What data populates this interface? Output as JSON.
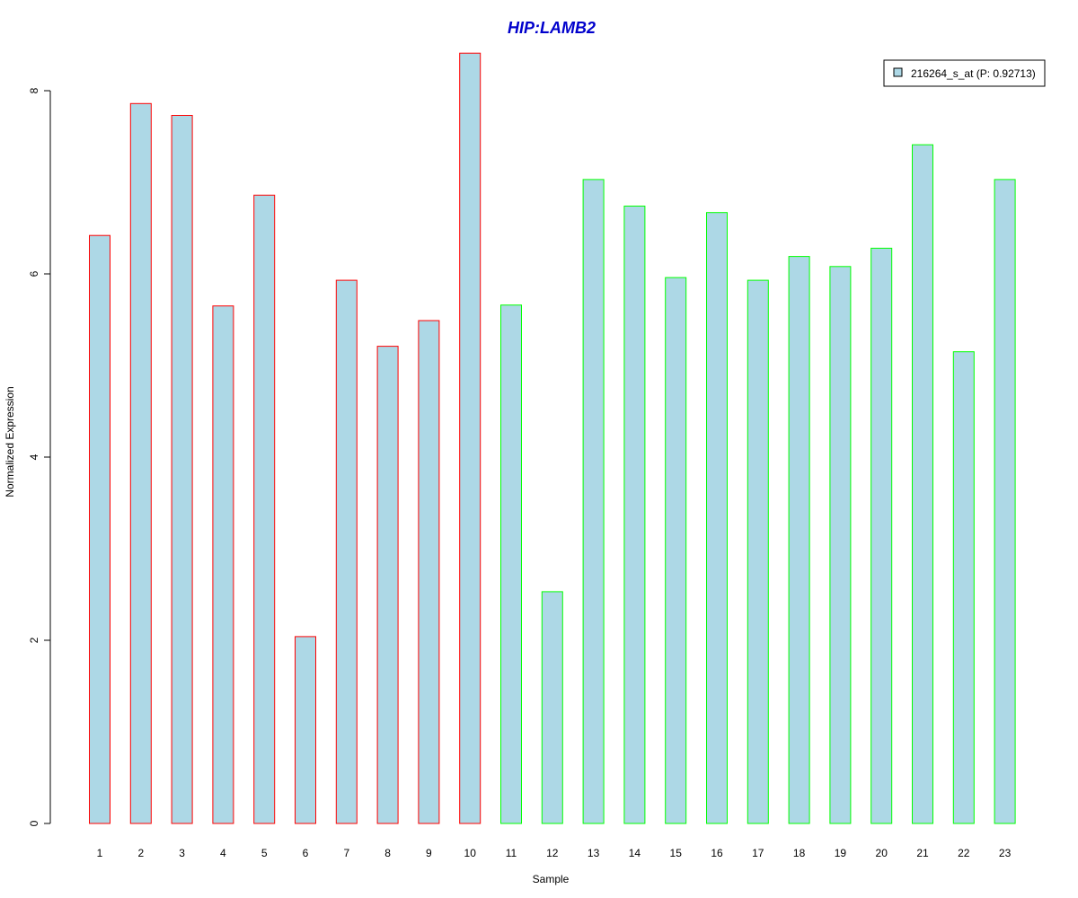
{
  "chart_data": {
    "type": "bar",
    "title": "HIP:LAMB2",
    "xlabel": "Sample",
    "ylabel": "Normalized Expression",
    "categories": [
      "1",
      "2",
      "3",
      "4",
      "5",
      "6",
      "7",
      "8",
      "9",
      "10",
      "11",
      "12",
      "13",
      "14",
      "15",
      "16",
      "17",
      "18",
      "19",
      "20",
      "21",
      "22",
      "23"
    ],
    "series": [
      {
        "name": "216264_s_at (P: 0.92713)",
        "values": [
          6.42,
          7.86,
          7.73,
          5.65,
          6.86,
          2.04,
          5.93,
          5.21,
          5.49,
          8.41,
          5.66,
          2.53,
          7.03,
          6.74,
          5.96,
          6.67,
          5.93,
          6.19,
          6.08,
          6.28,
          7.41,
          5.15,
          7.03
        ]
      }
    ],
    "bar_outline_groups": [
      "red",
      "red",
      "red",
      "red",
      "red",
      "red",
      "red",
      "red",
      "red",
      "red",
      "green",
      "green",
      "green",
      "green",
      "green",
      "green",
      "green",
      "green",
      "green",
      "green",
      "green",
      "green",
      "green"
    ],
    "yticks": [
      "0",
      "2",
      "4",
      "6",
      "8"
    ],
    "ylim": [
      0,
      8.41
    ],
    "grid": false,
    "legend_position": "top-right"
  },
  "colors": {
    "bar_fill": "#add8e6",
    "red": "#ff0000",
    "green": "#00ff00",
    "title": "#0000cc",
    "axis": "#000000"
  }
}
